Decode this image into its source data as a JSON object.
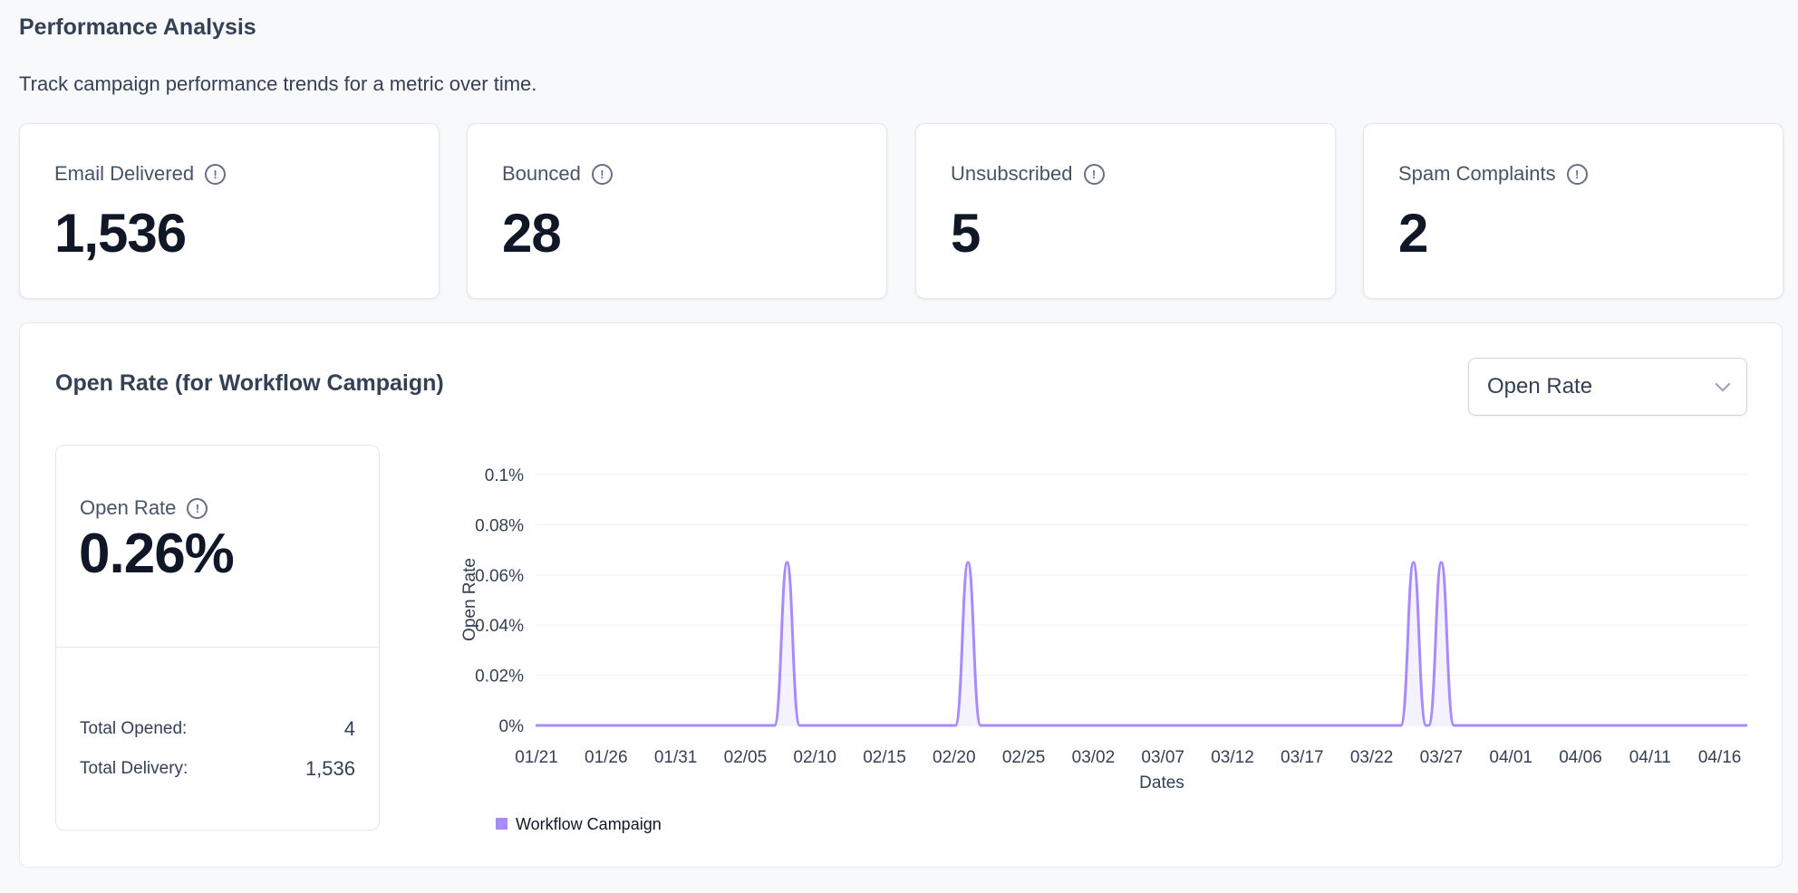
{
  "header": {
    "title": "Performance Analysis",
    "subtitle": "Track campaign performance trends for a metric over time."
  },
  "stats": [
    {
      "label": "Email Delivered",
      "value": "1,536"
    },
    {
      "label": "Bounced",
      "value": "28"
    },
    {
      "label": "Unsubscribed",
      "value": "5"
    },
    {
      "label": "Spam Complaints",
      "value": "2"
    }
  ],
  "panel": {
    "title": "Open Rate (for Workflow Campaign)",
    "select": {
      "value": "Open Rate"
    },
    "summary": {
      "label": "Open Rate",
      "value": "0.26%",
      "rows": [
        {
          "label": "Total Opened:",
          "value": "4"
        },
        {
          "label": "Total Delivery:",
          "value": "1,536"
        }
      ]
    }
  },
  "icons": {
    "info": "info-circle-icon",
    "select": "chevron-down-icon"
  },
  "colors": {
    "series": "#a78bfa",
    "series_fill": "#ede9fe"
  },
  "chart_data": {
    "type": "area",
    "xlabel": "Dates",
    "ylabel": "Open Rate",
    "x_ticks": [
      "01/21",
      "01/26",
      "01/31",
      "02/05",
      "02/10",
      "02/15",
      "02/20",
      "02/25",
      "03/02",
      "03/07",
      "03/12",
      "03/17",
      "03/22",
      "03/27",
      "04/01",
      "04/06",
      "04/11",
      "04/16"
    ],
    "y_ticks": [
      "0%",
      "0.02%",
      "0.04%",
      "0.06%",
      "0.08%",
      "0.1%"
    ],
    "ylim": [
      0,
      0.1
    ],
    "grid": true,
    "legend_position": "bottom-left",
    "series": [
      {
        "name": "Workflow Campaign",
        "points": [
          {
            "x": "02/08",
            "y": 0.065
          },
          {
            "x": "02/21",
            "y": 0.065
          },
          {
            "x": "03/24",
            "y": 0.065
          },
          {
            "x": "03/26",
            "y": 0.065
          }
        ],
        "baseline": 0
      }
    ]
  }
}
